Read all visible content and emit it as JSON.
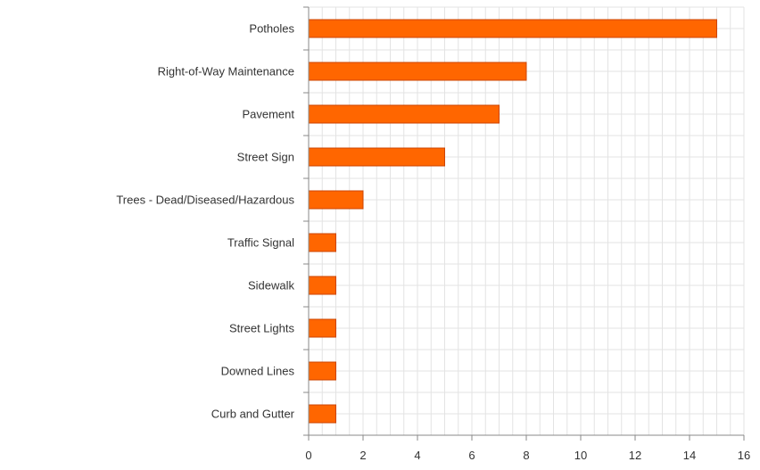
{
  "chart_data": {
    "type": "bar",
    "orientation": "horizontal",
    "title": "",
    "xlabel": "",
    "ylabel": "",
    "categories": [
      "Potholes",
      "Right-of-Way Maintenance",
      "Pavement",
      "Street Sign",
      "Trees - Dead/Diseased/Hazardous",
      "Traffic Signal",
      "Sidewalk",
      "Street Lights",
      "Downed Lines",
      "Curb and Gutter"
    ],
    "values": [
      15,
      8,
      7,
      5,
      2,
      1,
      1,
      1,
      1,
      1
    ],
    "xlim": [
      0,
      16
    ],
    "xticks": [
      "0",
      "2",
      "4",
      "6",
      "8",
      "10",
      "12",
      "14",
      "16"
    ],
    "grid": true,
    "bar_color": "#ff6600",
    "bar_edge_color": "#cc4400",
    "grid_color": "#e3e3e3",
    "axis_color": "#888888"
  }
}
